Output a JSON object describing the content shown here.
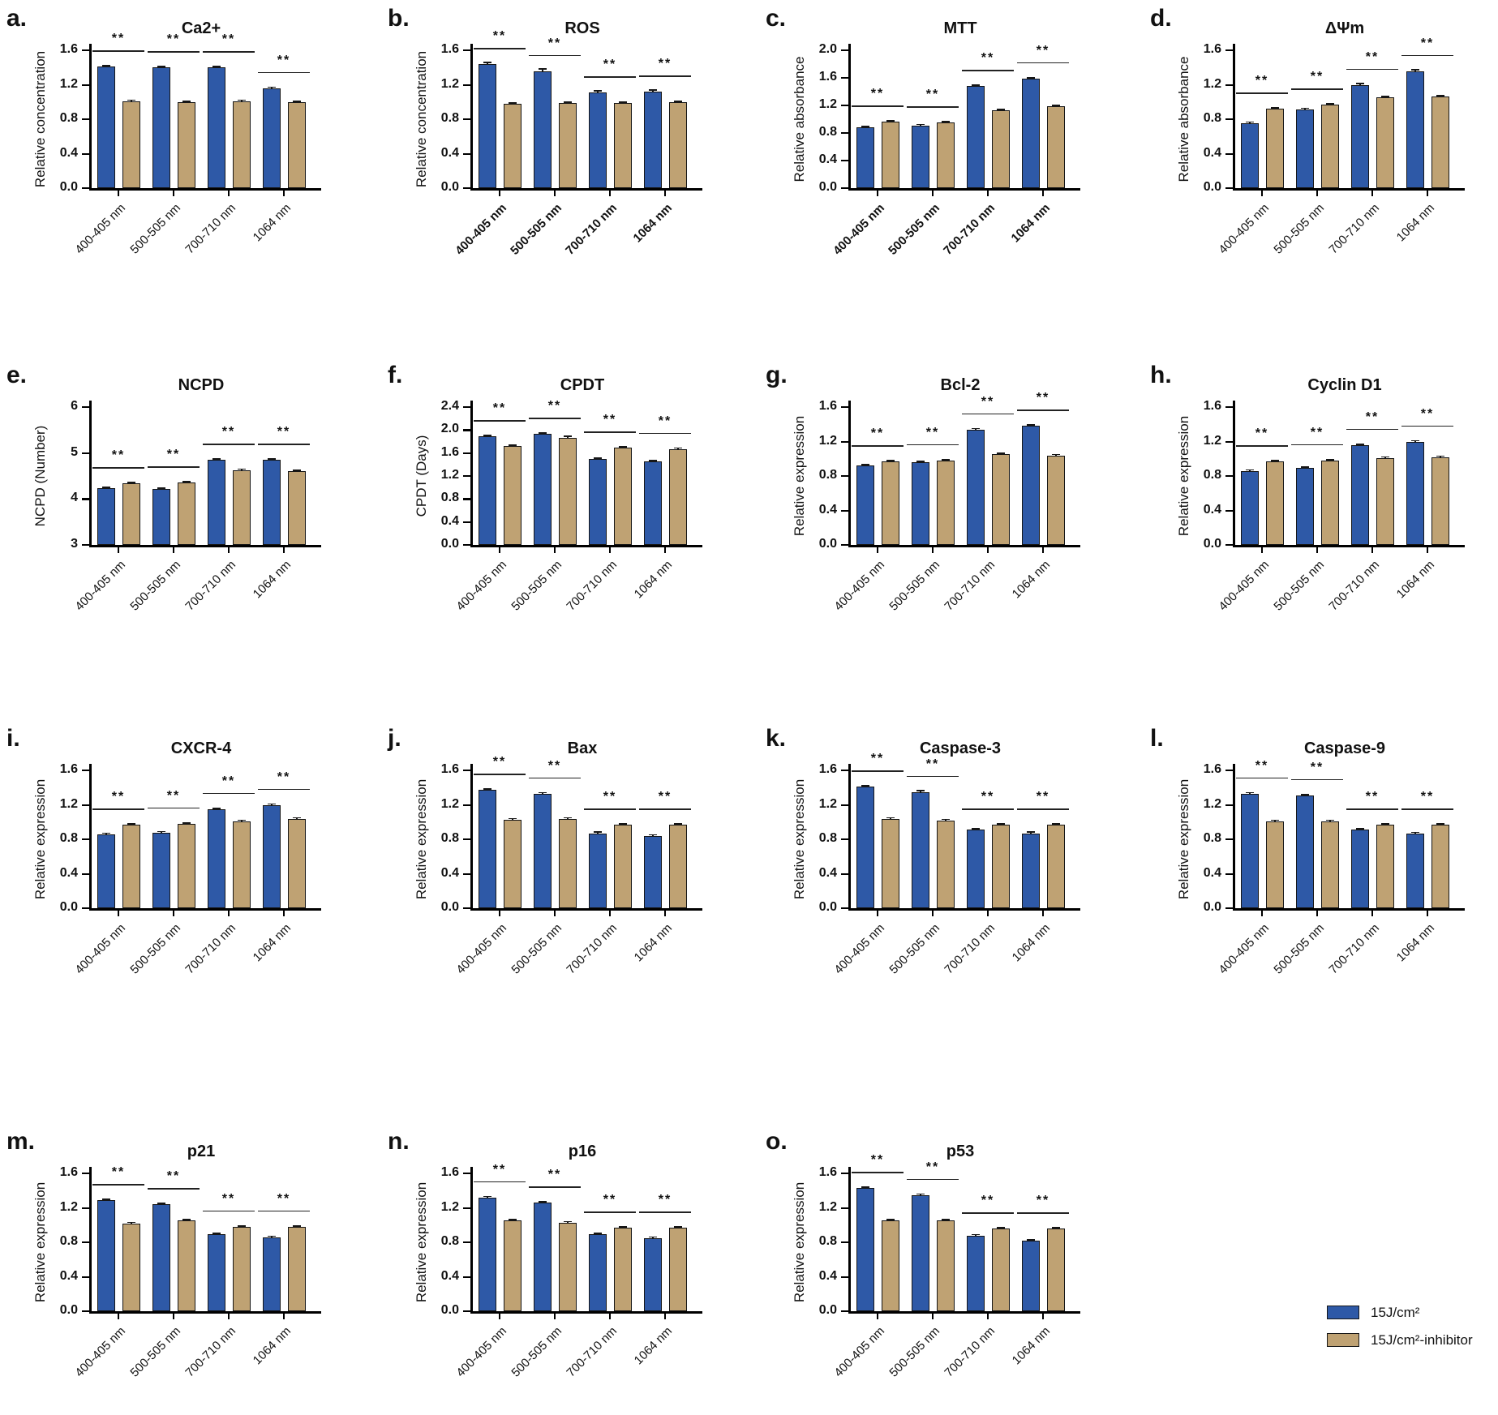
{
  "legend": {
    "items": [
      {
        "label": "15J/cm²",
        "color": "#2e59a7"
      },
      {
        "label": "15J/cm²-inhibitor",
        "color": "#bfa273"
      }
    ]
  },
  "chart_data": [
    {
      "type": "bar",
      "letter": "a.",
      "title": "Ca2+",
      "ylabel": "Relative concentration",
      "categories": [
        "400-405 nm",
        "500-505 nm",
        "700-710 nm",
        "1064 nm"
      ],
      "ylim": [
        0,
        1.6
      ],
      "ytick_values": [
        0,
        0.4,
        0.8,
        1.2,
        1.6
      ],
      "ytick_labels": [
        "0.0",
        "0.4",
        "0.8",
        "1.2",
        "1.6"
      ],
      "series": [
        {
          "name": "15J/cm²",
          "color": "#2e59a7",
          "values": [
            1.41,
            1.4,
            1.4,
            1.16
          ],
          "error": 0.02
        },
        {
          "name": "15J/cm²-inhibitor",
          "color": "#bfa273",
          "values": [
            1.01,
            1.0,
            1.01,
            1.0
          ],
          "error": 0.012
        }
      ],
      "significance": [
        "**",
        "**",
        "**",
        "**"
      ],
      "bold_xticklabels": false
    },
    {
      "type": "bar",
      "letter": "b.",
      "title": "ROS",
      "ylabel": "Relative concentration",
      "categories": [
        "400-405 nm",
        "500-505 nm",
        "700-710 nm",
        "1064 nm"
      ],
      "ylim": [
        0,
        1.6
      ],
      "ytick_values": [
        0,
        0.4,
        0.8,
        1.2,
        1.6
      ],
      "ytick_labels": [
        "0.0",
        "0.4",
        "0.8",
        "1.2",
        "1.6"
      ],
      "series": [
        {
          "name": "15J/cm²",
          "color": "#2e59a7",
          "values": [
            1.44,
            1.36,
            1.11,
            1.12
          ],
          "error": 0.03
        },
        {
          "name": "15J/cm²-inhibitor",
          "color": "#bfa273",
          "values": [
            0.98,
            0.99,
            0.99,
            1.0
          ],
          "error": 0.01
        }
      ],
      "significance": [
        "**",
        "**",
        "**",
        "**"
      ],
      "bold_xticklabels": true
    },
    {
      "type": "bar",
      "letter": "c.",
      "title": "MTT",
      "ylabel": "Relative absorbance",
      "categories": [
        "400-405 nm",
        "500-505 nm",
        "700-710 nm",
        "1064 nm"
      ],
      "ylim": [
        0,
        2.0
      ],
      "ytick_values": [
        0,
        0.4,
        0.8,
        1.2,
        1.6,
        2.0
      ],
      "ytick_labels": [
        "0.0",
        "0.4",
        "0.8",
        "1.2",
        "1.6",
        "2.0"
      ],
      "series": [
        {
          "name": "15J/cm²",
          "color": "#2e59a7",
          "values": [
            0.88,
            0.91,
            1.48,
            1.59
          ],
          "error": 0.025
        },
        {
          "name": "15J/cm²-inhibitor",
          "color": "#bfa273",
          "values": [
            0.96,
            0.95,
            1.13,
            1.19
          ],
          "error": 0.025
        }
      ],
      "significance": [
        "**",
        "**",
        "**",
        "**"
      ],
      "bold_xticklabels": true
    },
    {
      "type": "bar",
      "letter": "d.",
      "title": "ΔΨm",
      "ylabel": "Relative absorbance",
      "categories": [
        "400-405 nm",
        "500-505 nm",
        "700-710 nm",
        "1064 nm"
      ],
      "ylim": [
        0,
        1.6
      ],
      "ytick_values": [
        0,
        0.4,
        0.8,
        1.2,
        1.6
      ],
      "ytick_labels": [
        "0.0",
        "0.4",
        "0.8",
        "1.2",
        "1.6"
      ],
      "series": [
        {
          "name": "15J/cm²",
          "color": "#2e59a7",
          "values": [
            0.75,
            0.91,
            1.2,
            1.36
          ],
          "error": 0.025
        },
        {
          "name": "15J/cm²-inhibitor",
          "color": "#bfa273",
          "values": [
            0.92,
            0.97,
            1.05,
            1.06
          ],
          "error": 0.02
        }
      ],
      "significance": [
        "**",
        "**",
        "**",
        "**"
      ],
      "bold_xticklabels": false
    },
    {
      "type": "bar",
      "letter": "e.",
      "title": "NCPD",
      "ylabel": "NCPD (Number)",
      "categories": [
        "400-405 nm",
        "500-505 nm",
        "700-710 nm",
        "1064 nm"
      ],
      "ylim": [
        3,
        6
      ],
      "ytick_values": [
        3,
        4,
        5,
        6
      ],
      "ytick_labels": [
        "3",
        "4",
        "5",
        "6"
      ],
      "series": [
        {
          "name": "15J/cm²",
          "color": "#2e59a7",
          "values": [
            4.23,
            4.21,
            4.85,
            4.85
          ],
          "error": 0.02
        },
        {
          "name": "15J/cm²-inhibitor",
          "color": "#bfa273",
          "values": [
            4.34,
            4.36,
            4.63,
            4.61
          ],
          "error": 0.02
        }
      ],
      "significance": [
        "**",
        "**",
        "**",
        "**"
      ],
      "bold_xticklabels": false
    },
    {
      "type": "bar",
      "letter": "f.",
      "title": "CPDT",
      "ylabel": "CPDT (Days)",
      "categories": [
        "400-405 nm",
        "500-505 nm",
        "700-710 nm",
        "1064 nm"
      ],
      "ylim": [
        0,
        2.4
      ],
      "ytick_values": [
        0,
        0.4,
        0.8,
        1.2,
        1.6,
        2.0,
        2.4
      ],
      "ytick_labels": [
        "0.0",
        "0.4",
        "0.8",
        "1.2",
        "1.6",
        "2.0",
        "2.4"
      ],
      "series": [
        {
          "name": "15J/cm²",
          "color": "#2e59a7",
          "values": [
            1.89,
            1.93,
            1.49,
            1.45
          ],
          "error": 0.025
        },
        {
          "name": "15J/cm²-inhibitor",
          "color": "#bfa273",
          "values": [
            1.72,
            1.87,
            1.69,
            1.67
          ],
          "error": 0.03
        }
      ],
      "significance": [
        "**",
        "**",
        "**",
        "**"
      ],
      "bold_xticklabels": false
    },
    {
      "type": "bar",
      "letter": "g.",
      "title": "Bcl-2",
      "ylabel": "Relative expression",
      "categories": [
        "400-405 nm",
        "500-505 nm",
        "700-710 nm",
        "1064 nm"
      ],
      "ylim": [
        0,
        1.6
      ],
      "ytick_values": [
        0,
        0.4,
        0.8,
        1.2,
        1.6
      ],
      "ytick_labels": [
        "0.0",
        "0.4",
        "0.8",
        "1.2",
        "1.6"
      ],
      "series": [
        {
          "name": "15J/cm²",
          "color": "#2e59a7",
          "values": [
            0.92,
            0.96,
            1.34,
            1.38
          ],
          "error": 0.02
        },
        {
          "name": "15J/cm²-inhibitor",
          "color": "#bfa273",
          "values": [
            0.97,
            0.98,
            1.05,
            1.04
          ],
          "error": 0.015
        }
      ],
      "significance": [
        "**",
        "**",
        "**",
        "**"
      ],
      "bold_xticklabels": false
    },
    {
      "type": "bar",
      "letter": "h.",
      "title": "Cyclin D1",
      "ylabel": "Relative expression",
      "categories": [
        "400-405 nm",
        "500-505 nm",
        "700-710 nm",
        "1064 nm"
      ],
      "ylim": [
        0,
        1.6
      ],
      "ytick_values": [
        0,
        0.4,
        0.8,
        1.2,
        1.6
      ],
      "ytick_labels": [
        "0.0",
        "0.4",
        "0.8",
        "1.2",
        "1.6"
      ],
      "series": [
        {
          "name": "15J/cm²",
          "color": "#2e59a7",
          "values": [
            0.86,
            0.89,
            1.16,
            1.2
          ],
          "error": 0.015
        },
        {
          "name": "15J/cm²-inhibitor",
          "color": "#bfa273",
          "values": [
            0.97,
            0.98,
            1.01,
            1.02
          ],
          "error": 0.02
        }
      ],
      "significance": [
        "**",
        "**",
        "**",
        "**"
      ],
      "bold_xticklabels": false
    },
    {
      "type": "bar",
      "letter": "i.",
      "title": "CXCR-4",
      "ylabel": "Relative expression",
      "categories": [
        "400-405 nm",
        "500-505 nm",
        "700-710 nm",
        "1064 nm"
      ],
      "ylim": [
        0,
        1.6
      ],
      "ytick_values": [
        0,
        0.4,
        0.8,
        1.2,
        1.6
      ],
      "ytick_labels": [
        "0.0",
        "0.4",
        "0.8",
        "1.2",
        "1.6"
      ],
      "series": [
        {
          "name": "15J/cm²",
          "color": "#2e59a7",
          "values": [
            0.86,
            0.88,
            1.15,
            1.2
          ],
          "error": 0.015
        },
        {
          "name": "15J/cm²-inhibitor",
          "color": "#bfa273",
          "values": [
            0.97,
            0.98,
            1.01,
            1.04
          ],
          "error": 0.012
        }
      ],
      "significance": [
        "**",
        "**",
        "**",
        "**"
      ],
      "bold_xticklabels": false
    },
    {
      "type": "bar",
      "letter": "j.",
      "title": "Bax",
      "ylabel": "Relative expression",
      "categories": [
        "400-405 nm",
        "500-505 nm",
        "700-710 nm",
        "1064 nm"
      ],
      "ylim": [
        0,
        1.6
      ],
      "ytick_values": [
        0,
        0.4,
        0.8,
        1.2,
        1.6
      ],
      "ytick_labels": [
        "0.0",
        "0.4",
        "0.8",
        "1.2",
        "1.6"
      ],
      "series": [
        {
          "name": "15J/cm²",
          "color": "#2e59a7",
          "values": [
            1.37,
            1.33,
            0.87,
            0.84
          ],
          "error": 0.02
        },
        {
          "name": "15J/cm²-inhibitor",
          "color": "#bfa273",
          "values": [
            1.03,
            1.04,
            0.97,
            0.97
          ],
          "error": 0.012
        }
      ],
      "significance": [
        "**",
        "**",
        "**",
        "**"
      ],
      "bold_xticklabels": false
    },
    {
      "type": "bar",
      "letter": "k.",
      "title": "Caspase-3",
      "ylabel": "Relative expression",
      "categories": [
        "400-405 nm",
        "500-505 nm",
        "700-710 nm",
        "1064 nm"
      ],
      "ylim": [
        0,
        1.6
      ],
      "ytick_values": [
        0,
        0.4,
        0.8,
        1.2,
        1.6
      ],
      "ytick_labels": [
        "0.0",
        "0.4",
        "0.8",
        "1.2",
        "1.6"
      ],
      "series": [
        {
          "name": "15J/cm²",
          "color": "#2e59a7",
          "values": [
            1.41,
            1.35,
            0.91,
            0.87
          ],
          "error": 0.02
        },
        {
          "name": "15J/cm²-inhibitor",
          "color": "#bfa273",
          "values": [
            1.04,
            1.02,
            0.97,
            0.97
          ],
          "error": 0.012
        }
      ],
      "significance": [
        "**",
        "**",
        "**",
        "**"
      ],
      "bold_xticklabels": false
    },
    {
      "type": "bar",
      "letter": "l.",
      "title": "Caspase-9",
      "ylabel": "Relative expression",
      "categories": [
        "400-405 nm",
        "500-505 nm",
        "700-710 nm",
        "1064 nm"
      ],
      "ylim": [
        0,
        1.6
      ],
      "ytick_values": [
        0,
        0.4,
        0.8,
        1.2,
        1.6
      ],
      "ytick_labels": [
        "0.0",
        "0.4",
        "0.8",
        "1.2",
        "1.6"
      ],
      "series": [
        {
          "name": "15J/cm²",
          "color": "#2e59a7",
          "values": [
            1.33,
            1.31,
            0.91,
            0.87
          ],
          "error": 0.015
        },
        {
          "name": "15J/cm²-inhibitor",
          "color": "#bfa273",
          "values": [
            1.01,
            1.01,
            0.97,
            0.97
          ],
          "error": 0.012
        }
      ],
      "significance": [
        "**",
        "**",
        "**",
        "**"
      ],
      "bold_xticklabels": false
    },
    {
      "type": "bar",
      "letter": "m.",
      "title": "p21",
      "ylabel": "Relative expression",
      "categories": [
        "400-405 nm",
        "500-505 nm",
        "700-710 nm",
        "1064 nm"
      ],
      "ylim": [
        0,
        1.6
      ],
      "ytick_values": [
        0,
        0.4,
        0.8,
        1.2,
        1.6
      ],
      "ytick_labels": [
        "0.0",
        "0.4",
        "0.8",
        "1.2",
        "1.6"
      ],
      "series": [
        {
          "name": "15J/cm²",
          "color": "#2e59a7",
          "values": [
            1.29,
            1.24,
            0.89,
            0.86
          ],
          "error": 0.015
        },
        {
          "name": "15J/cm²-inhibitor",
          "color": "#bfa273",
          "values": [
            1.02,
            1.05,
            0.98,
            0.98
          ],
          "error": 0.02
        }
      ],
      "significance": [
        "**",
        "**",
        "**",
        "**"
      ],
      "bold_xticklabels": false
    },
    {
      "type": "bar",
      "letter": "n.",
      "title": "p16",
      "ylabel": "Relative expression",
      "categories": [
        "400-405 nm",
        "500-505 nm",
        "700-710 nm",
        "1064 nm"
      ],
      "ylim": [
        0,
        1.6
      ],
      "ytick_values": [
        0,
        0.4,
        0.8,
        1.2,
        1.6
      ],
      "ytick_labels": [
        "0.0",
        "0.4",
        "0.8",
        "1.2",
        "1.6"
      ],
      "series": [
        {
          "name": "15J/cm²",
          "color": "#2e59a7",
          "values": [
            1.32,
            1.26,
            0.89,
            0.85
          ],
          "error": 0.02
        },
        {
          "name": "15J/cm²-inhibitor",
          "color": "#bfa273",
          "values": [
            1.05,
            1.03,
            0.97,
            0.97
          ],
          "error": 0.015
        }
      ],
      "significance": [
        "**",
        "**",
        "**",
        "**"
      ],
      "bold_xticklabels": false
    },
    {
      "type": "bar",
      "letter": "o.",
      "title": "p53",
      "ylabel": "Relative expression",
      "categories": [
        "400-405 nm",
        "500-505 nm",
        "700-710 nm",
        "1064 nm"
      ],
      "ylim": [
        0,
        1.6
      ],
      "ytick_values": [
        0,
        0.4,
        0.8,
        1.2,
        1.6
      ],
      "ytick_labels": [
        "0.0",
        "0.4",
        "0.8",
        "1.2",
        "1.6"
      ],
      "series": [
        {
          "name": "15J/cm²",
          "color": "#2e59a7",
          "values": [
            1.43,
            1.35,
            0.88,
            0.82
          ],
          "error": 0.015
        },
        {
          "name": "15J/cm²-inhibitor",
          "color": "#bfa273",
          "values": [
            1.05,
            1.05,
            0.96,
            0.96
          ],
          "error": 0.015
        }
      ],
      "significance": [
        "**",
        "**",
        "**",
        "**"
      ],
      "bold_xticklabels": false
    }
  ]
}
